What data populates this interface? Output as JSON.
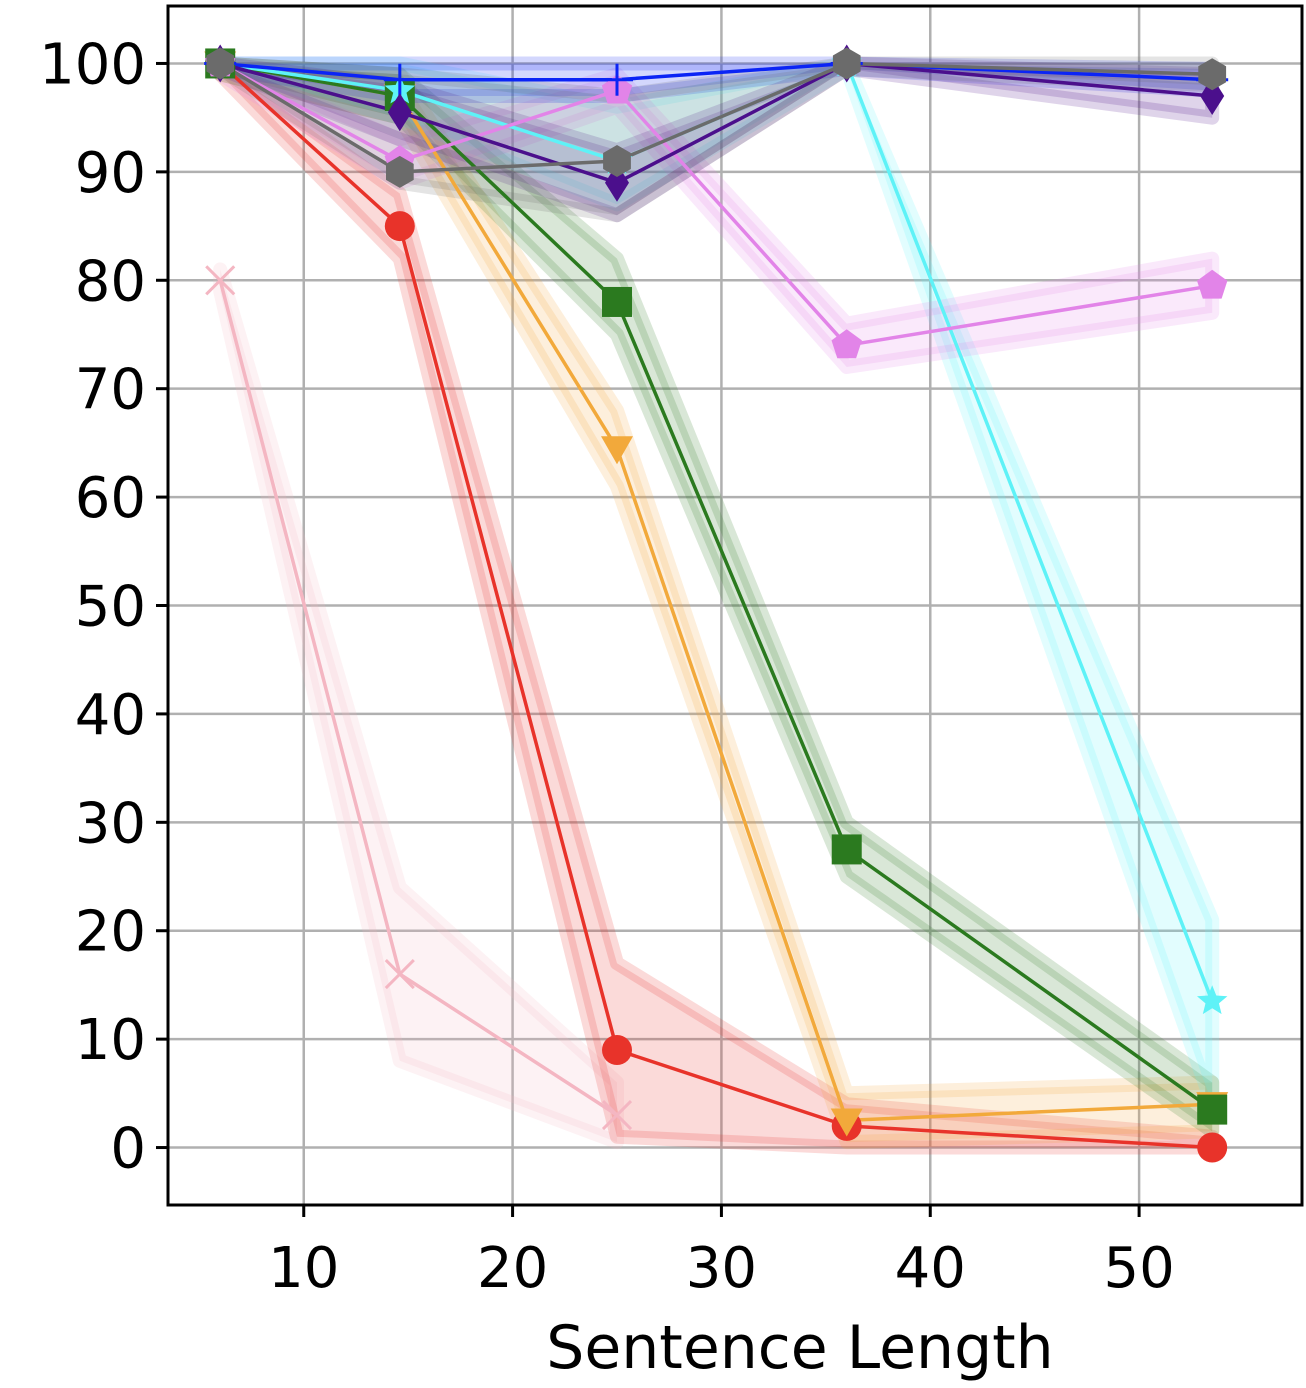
{
  "chart_data": {
    "type": "line",
    "title": "",
    "xlabel": "Sentence Length",
    "ylabel": "",
    "xlim": [
      3.5,
      57.8
    ],
    "ylim": [
      -5.3,
      105.3
    ],
    "xticks": [
      10,
      20,
      30,
      40,
      50
    ],
    "yticks": [
      0,
      10,
      20,
      30,
      40,
      50,
      60,
      70,
      80,
      90,
      100
    ],
    "grid": true,
    "x": [
      6,
      14.6,
      25,
      36,
      53.5
    ],
    "series": [
      {
        "color": "#f4b6c2",
        "marker": "x",
        "values": [
          80,
          16,
          3,
          null,
          null
        ],
        "band": [
          [
            79,
            81
          ],
          [
            8,
            24
          ],
          [
            0.5,
            6
          ],
          null,
          null
        ]
      },
      {
        "color": "#e8332a",
        "marker": "circle",
        "values": [
          100,
          85,
          9,
          2,
          0
        ],
        "band": [
          [
            99,
            100
          ],
          [
            82,
            88
          ],
          [
            1,
            17
          ],
          [
            0,
            4
          ],
          [
            0,
            1
          ]
        ]
      },
      {
        "color": "#f2a93b",
        "marker": "triangle-down",
        "values": [
          100,
          97,
          64.5,
          2.5,
          4
        ],
        "band": [
          [
            99,
            100
          ],
          [
            95,
            99
          ],
          [
            61,
            68
          ],
          [
            0.5,
            5
          ],
          [
            1.5,
            6
          ]
        ]
      },
      {
        "color": "#2b7a1f",
        "marker": "square",
        "values": [
          100,
          97,
          78,
          27.5,
          3.5
        ],
        "band": [
          [
            99,
            100
          ],
          [
            95,
            99
          ],
          [
            75,
            82
          ],
          [
            25,
            30
          ],
          [
            1.5,
            6
          ]
        ]
      },
      {
        "color": "#5ef2f7",
        "marker": "star",
        "values": [
          100,
          97.5,
          91,
          100,
          13.5
        ],
        "band": [
          [
            99.5,
            100
          ],
          [
            95,
            100
          ],
          [
            87,
            96
          ],
          [
            99.5,
            100
          ],
          [
            4,
            21
          ]
        ]
      },
      {
        "color": "#e284e8",
        "marker": "pentagon",
        "values": [
          100,
          91,
          97.5,
          74,
          79.5
        ],
        "band": [
          [
            99,
            100
          ],
          [
            89,
            93
          ],
          [
            96,
            99
          ],
          [
            72,
            76
          ],
          [
            77,
            82
          ]
        ]
      },
      {
        "color": "#0b24f5",
        "marker": "plus",
        "values": [
          100,
          98.5,
          98.5,
          100,
          98.5
        ],
        "band": [
          [
            99.5,
            100
          ],
          [
            97,
            100
          ],
          [
            97,
            100
          ],
          [
            99.5,
            100
          ],
          [
            97.5,
            99.5
          ]
        ]
      },
      {
        "color": "#4b0f8c",
        "marker": "diamond",
        "values": [
          100,
          95.5,
          89,
          100,
          97
        ],
        "band": [
          [
            99.5,
            100
          ],
          [
            93,
            98
          ],
          [
            86,
            92
          ],
          [
            99.5,
            100
          ],
          [
            95,
            99
          ]
        ]
      },
      {
        "color": "#6b6b6b",
        "marker": "hexagon",
        "values": [
          100,
          90,
          91,
          100,
          99
        ],
        "band": [
          [
            99.5,
            100
          ],
          [
            89,
            99
          ],
          [
            86,
            97
          ],
          [
            99.5,
            100
          ],
          [
            98,
            100
          ]
        ]
      }
    ]
  }
}
